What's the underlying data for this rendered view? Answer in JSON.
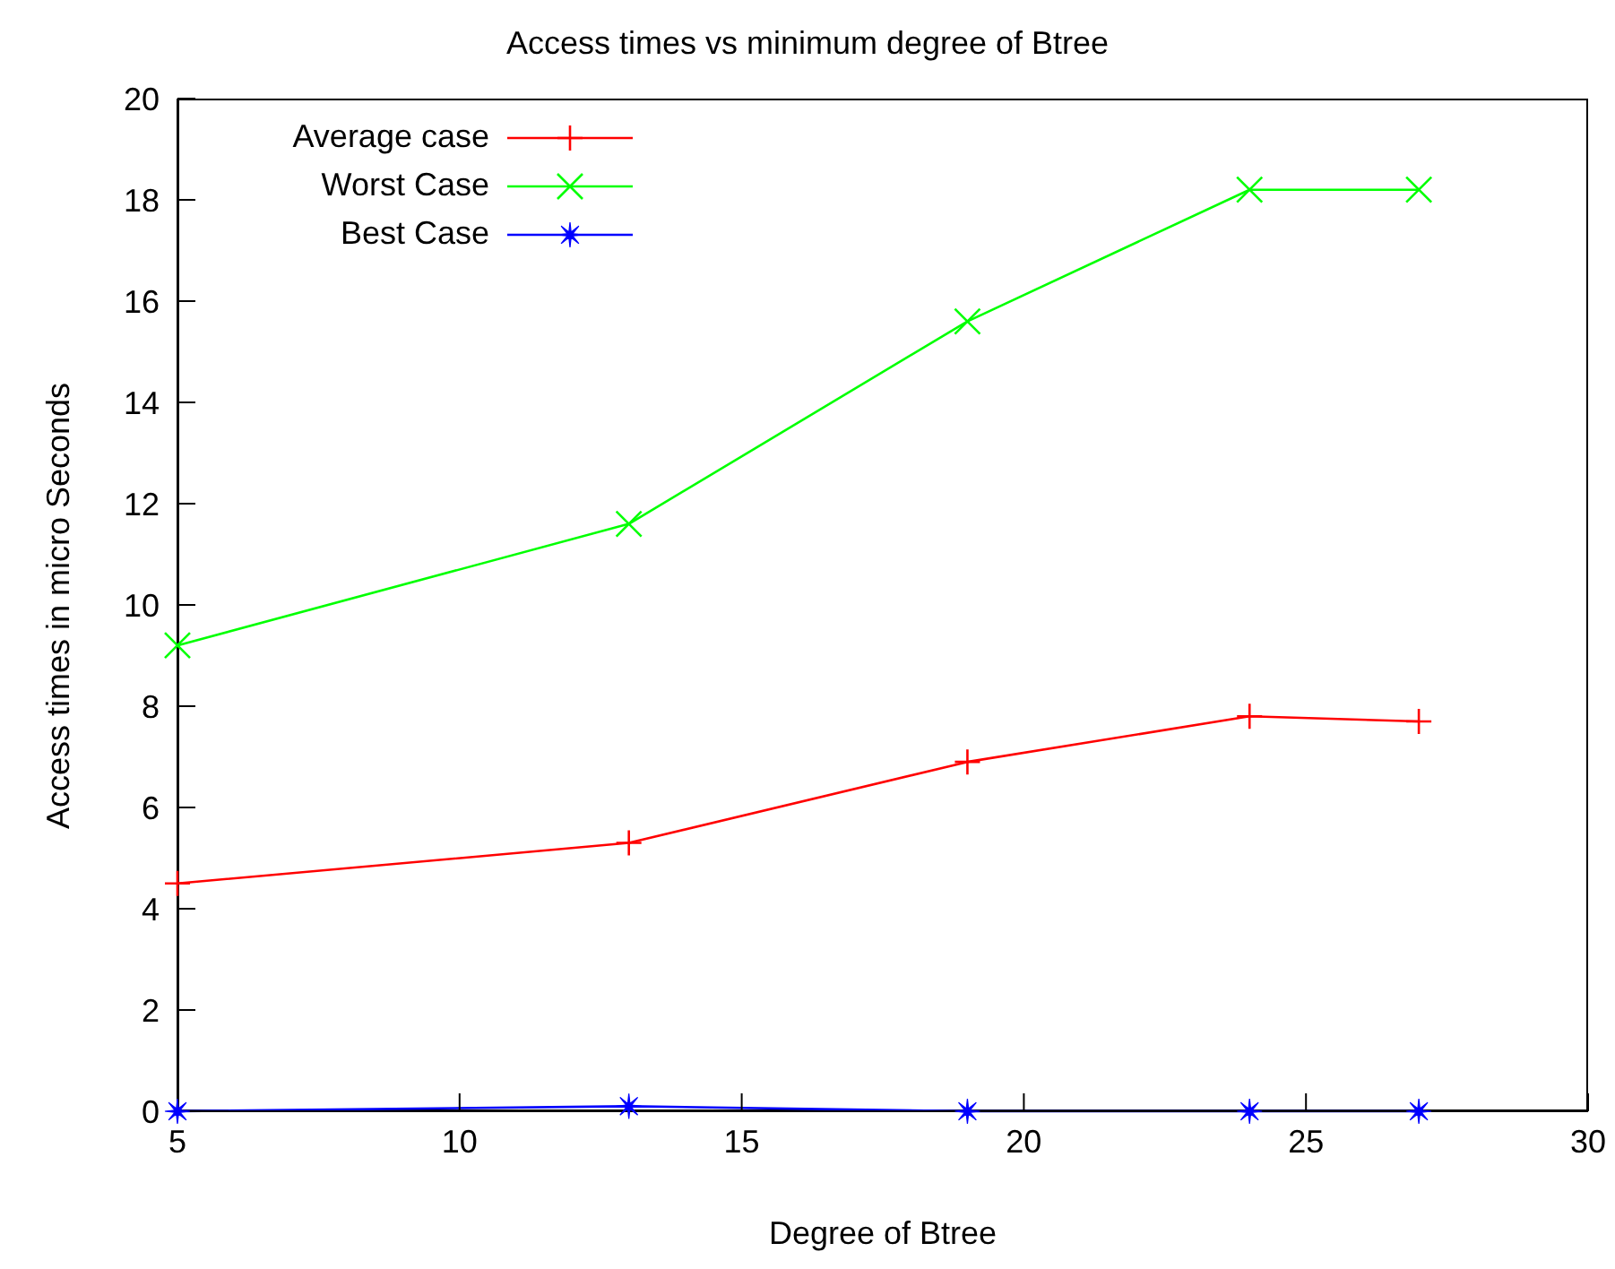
{
  "chart_data": {
    "type": "line",
    "title": "Access times vs minimum degree of Btree",
    "xlabel": "Degree of Btree",
    "ylabel": "Access times in micro Seconds",
    "x": [
      5,
      13,
      19,
      24,
      27
    ],
    "series": [
      {
        "name": "Average case",
        "color": "#ff0000",
        "marker": "cross",
        "values": [
          4.5,
          5.3,
          6.9,
          7.8,
          7.7
        ]
      },
      {
        "name": "Worst Case",
        "color": "#00ff00",
        "marker": "x",
        "values": [
          9.2,
          11.6,
          15.6,
          18.2,
          18.2
        ]
      },
      {
        "name": "Best Case",
        "color": "#0000ff",
        "marker": "star",
        "values": [
          0.0,
          0.1,
          0.0,
          0.0,
          0.0
        ]
      }
    ],
    "xlim": [
      5,
      30
    ],
    "xticks": [
      5,
      10,
      15,
      20,
      25,
      30
    ],
    "ylim": [
      0,
      20
    ],
    "yticks": [
      0,
      2,
      4,
      6,
      8,
      10,
      12,
      14,
      16,
      18,
      20
    ],
    "grid": false,
    "legend": "top left"
  }
}
